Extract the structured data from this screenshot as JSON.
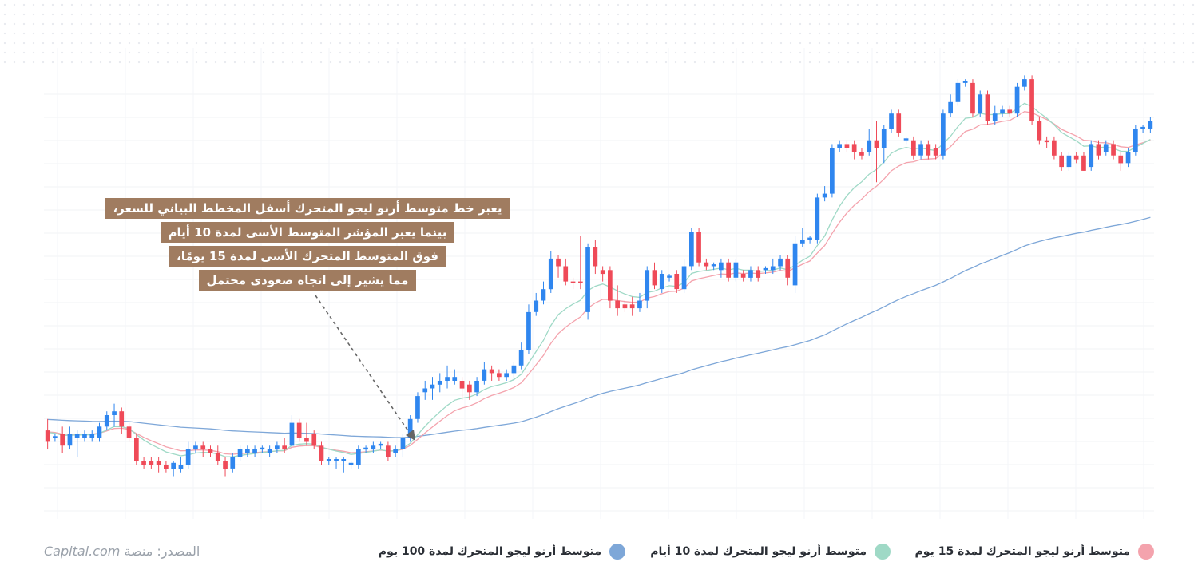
{
  "annotation": {
    "lines": [
      "يعبر خط متوسط أرنو ليجو المتحرك أسفل المخطط البياني للسعر،",
      "بينما يعبر المؤشر المتوسط الأسى لمدة 10 أيام",
      "فوق المتوسط المتحرك الأسى لمدة 15 يومًا،",
      "مما يشير إلى اتجاه صعودى محتمل"
    ]
  },
  "legend": {
    "items": [
      {
        "label": "متوسط أرنو ليجو المتحرك لمدة 15 يوم",
        "color": "#f4a3ad"
      },
      {
        "label": "متوسط أرنو ليجو المتحرك لمدة 10 أيام",
        "color": "#9fd9c6"
      },
      {
        "label": "متوسط أرنو ليجو المتحرك لمدة 100 يوم",
        "color": "#7ea7d8"
      }
    ]
  },
  "source": {
    "prefix": "المصدر: منصة",
    "brand": "Capital.com"
  },
  "colors": {
    "up": "#2f86ef",
    "down": "#ef4a58",
    "ma15": "#f4a3ad",
    "ma10": "#9fd9c6",
    "ma100": "#7ea7d8",
    "annotation_bg": "#a07c60"
  },
  "chart_data": {
    "type": "candlestick",
    "title": "",
    "xlabel": "",
    "ylabel": "",
    "ylim": [
      0,
      100
    ],
    "grid": true,
    "legend_position": "bottom",
    "candles": [
      {
        "o": 14,
        "c": 11,
        "h": 17,
        "l": 9
      },
      {
        "o": 12,
        "c": 12.5,
        "h": 13,
        "l": 11
      },
      {
        "o": 13,
        "c": 10,
        "h": 15,
        "l": 8
      },
      {
        "o": 10,
        "c": 13,
        "h": 15,
        "l": 9
      },
      {
        "o": 12,
        "c": 13,
        "h": 14,
        "l": 7
      },
      {
        "o": 12,
        "c": 13,
        "h": 14,
        "l": 11
      },
      {
        "o": 12,
        "c": 13,
        "h": 14,
        "l": 11
      },
      {
        "o": 12,
        "c": 15,
        "h": 16,
        "l": 11
      },
      {
        "o": 15,
        "c": 18,
        "h": 19,
        "l": 14
      },
      {
        "o": 18,
        "c": 19,
        "h": 21,
        "l": 15
      },
      {
        "o": 19,
        "c": 15,
        "h": 20,
        "l": 13
      },
      {
        "o": 15,
        "c": 12,
        "h": 16,
        "l": 11
      },
      {
        "o": 12,
        "c": 6,
        "h": 13,
        "l": 5
      },
      {
        "o": 6,
        "c": 5,
        "h": 7,
        "l": 4
      },
      {
        "o": 6,
        "c": 5,
        "h": 7,
        "l": 4
      },
      {
        "o": 6,
        "c": 5,
        "h": 7,
        "l": 3
      },
      {
        "o": 5,
        "c": 4,
        "h": 6,
        "l": 3
      },
      {
        "o": 4,
        "c": 5.5,
        "h": 6,
        "l": 2
      },
      {
        "o": 4,
        "c": 5,
        "h": 7,
        "l": 3
      },
      {
        "o": 5,
        "c": 9,
        "h": 11,
        "l": 4
      },
      {
        "o": 9,
        "c": 10,
        "h": 11,
        "l": 8
      },
      {
        "o": 10,
        "c": 9,
        "h": 11,
        "l": 7
      },
      {
        "o": 9,
        "c": 8,
        "h": 10,
        "l": 7
      },
      {
        "o": 8,
        "c": 6,
        "h": 10,
        "l": 5
      },
      {
        "o": 6,
        "c": 4,
        "h": 7,
        "l": 2
      },
      {
        "o": 4,
        "c": 7,
        "h": 8,
        "l": 3
      },
      {
        "o": 7,
        "c": 9,
        "h": 10,
        "l": 6
      },
      {
        "o": 8,
        "c": 9,
        "h": 10,
        "l": 7
      },
      {
        "o": 8,
        "c": 9,
        "h": 10,
        "l": 7
      },
      {
        "o": 9,
        "c": 9.5,
        "h": 10,
        "l": 8
      },
      {
        "o": 8,
        "c": 9,
        "h": 10,
        "l": 7
      },
      {
        "o": 9,
        "c": 10,
        "h": 11,
        "l": 8
      },
      {
        "o": 10,
        "c": 9,
        "h": 12,
        "l": 8
      },
      {
        "o": 10,
        "c": 16,
        "h": 18,
        "l": 9
      },
      {
        "o": 16,
        "c": 12,
        "h": 17,
        "l": 11
      },
      {
        "o": 12,
        "c": 11,
        "h": 16,
        "l": 10
      },
      {
        "o": 13,
        "c": 10,
        "h": 14,
        "l": 9
      },
      {
        "o": 10,
        "c": 6,
        "h": 11,
        "l": 5
      },
      {
        "o": 6,
        "c": 6.5,
        "h": 7,
        "l": 5
      },
      {
        "o": 6,
        "c": 6.5,
        "h": 7,
        "l": 4
      },
      {
        "o": 6,
        "c": 6.5,
        "h": 7,
        "l": 3
      },
      {
        "o": 5,
        "c": 5.5,
        "h": 6,
        "l": 4
      },
      {
        "o": 5,
        "c": 9,
        "h": 10,
        "l": 4
      },
      {
        "o": 9,
        "c": 9.5,
        "h": 10,
        "l": 8
      },
      {
        "o": 9,
        "c": 10,
        "h": 11,
        "l": 8
      },
      {
        "o": 10,
        "c": 10.5,
        "h": 11,
        "l": 9
      },
      {
        "o": 10,
        "c": 7,
        "h": 11,
        "l": 6
      },
      {
        "o": 8,
        "c": 9,
        "h": 10,
        "l": 7
      },
      {
        "o": 9,
        "c": 12,
        "h": 13,
        "l": 7
      },
      {
        "o": 12,
        "c": 17,
        "h": 18,
        "l": 11
      },
      {
        "o": 17,
        "c": 23,
        "h": 24,
        "l": 16
      },
      {
        "o": 24,
        "c": 25,
        "h": 27,
        "l": 22
      },
      {
        "o": 25,
        "c": 26,
        "h": 28,
        "l": 22
      },
      {
        "o": 26,
        "c": 27,
        "h": 29,
        "l": 24
      },
      {
        "o": 27,
        "c": 28,
        "h": 31,
        "l": 25
      },
      {
        "o": 27,
        "c": 28,
        "h": 30,
        "l": 26
      },
      {
        "o": 27,
        "c": 25,
        "h": 28,
        "l": 22
      },
      {
        "o": 26,
        "c": 24,
        "h": 27,
        "l": 22
      },
      {
        "o": 24,
        "c": 27,
        "h": 28,
        "l": 23
      },
      {
        "o": 27,
        "c": 30,
        "h": 32,
        "l": 26
      },
      {
        "o": 30,
        "c": 29,
        "h": 31,
        "l": 27
      },
      {
        "o": 29,
        "c": 28,
        "h": 30,
        "l": 27
      },
      {
        "o": 28,
        "c": 29,
        "h": 30,
        "l": 27
      },
      {
        "o": 29,
        "c": 31,
        "h": 32,
        "l": 27
      },
      {
        "o": 31,
        "c": 35,
        "h": 37,
        "l": 30
      },
      {
        "o": 35,
        "c": 45,
        "h": 47,
        "l": 34
      },
      {
        "o": 45,
        "c": 48,
        "h": 50,
        "l": 44
      },
      {
        "o": 48,
        "c": 51,
        "h": 53,
        "l": 47
      },
      {
        "o": 51,
        "c": 59,
        "h": 61,
        "l": 50
      },
      {
        "o": 59,
        "c": 57,
        "h": 60,
        "l": 54
      },
      {
        "o": 57,
        "c": 53,
        "h": 59,
        "l": 52
      },
      {
        "o": 53,
        "c": 52.5,
        "h": 54,
        "l": 51
      },
      {
        "o": 53,
        "c": 52.5,
        "h": 65,
        "l": 51
      },
      {
        "o": 45,
        "c": 62,
        "h": 63,
        "l": 43
      },
      {
        "o": 62,
        "c": 57,
        "h": 64,
        "l": 55
      },
      {
        "o": 56,
        "c": 55,
        "h": 57,
        "l": 53
      },
      {
        "o": 56,
        "c": 48,
        "h": 57,
        "l": 46
      },
      {
        "o": 48,
        "c": 46,
        "h": 52,
        "l": 44
      },
      {
        "o": 47,
        "c": 46,
        "h": 48,
        "l": 45
      },
      {
        "o": 47,
        "c": 46,
        "h": 49,
        "l": 44
      },
      {
        "o": 46,
        "c": 48,
        "h": 50,
        "l": 45
      },
      {
        "o": 48,
        "c": 56,
        "h": 57,
        "l": 46
      },
      {
        "o": 56,
        "c": 52,
        "h": 58,
        "l": 51
      },
      {
        "o": 51,
        "c": 55,
        "h": 56,
        "l": 50
      },
      {
        "o": 54,
        "c": 54.5,
        "h": 55,
        "l": 53
      },
      {
        "o": 55,
        "c": 51,
        "h": 56,
        "l": 50
      },
      {
        "o": 51,
        "c": 57,
        "h": 59,
        "l": 50
      },
      {
        "o": 57,
        "c": 66,
        "h": 67,
        "l": 56
      },
      {
        "o": 66,
        "c": 58,
        "h": 67,
        "l": 57
      },
      {
        "o": 58,
        "c": 57,
        "h": 59,
        "l": 56
      },
      {
        "o": 57,
        "c": 57.5,
        "h": 58,
        "l": 56
      },
      {
        "o": 56,
        "c": 58,
        "h": 59,
        "l": 54
      },
      {
        "o": 58,
        "c": 54,
        "h": 59,
        "l": 53
      },
      {
        "o": 54,
        "c": 58,
        "h": 59,
        "l": 53
      },
      {
        "o": 55,
        "c": 54,
        "h": 56,
        "l": 53
      },
      {
        "o": 54,
        "c": 56,
        "h": 57,
        "l": 53
      },
      {
        "o": 56,
        "c": 54,
        "h": 57,
        "l": 53
      },
      {
        "o": 56,
        "c": 56.5,
        "h": 57,
        "l": 55
      },
      {
        "o": 56,
        "c": 57,
        "h": 59,
        "l": 55
      },
      {
        "o": 57,
        "c": 59,
        "h": 60,
        "l": 56
      },
      {
        "o": 59,
        "c": 54,
        "h": 60,
        "l": 52
      },
      {
        "o": 52,
        "c": 63,
        "h": 65,
        "l": 50
      },
      {
        "o": 63,
        "c": 64,
        "h": 67,
        "l": 62
      },
      {
        "o": 64,
        "c": 64.5,
        "h": 65,
        "l": 63
      },
      {
        "o": 64,
        "c": 75,
        "h": 76,
        "l": 63
      },
      {
        "o": 75,
        "c": 76,
        "h": 78,
        "l": 74
      },
      {
        "o": 76,
        "c": 88,
        "h": 89,
        "l": 75
      },
      {
        "o": 88,
        "c": 89,
        "h": 90,
        "l": 87
      },
      {
        "o": 89,
        "c": 88,
        "h": 90,
        "l": 87
      },
      {
        "o": 89,
        "c": 87,
        "h": 90,
        "l": 85
      },
      {
        "o": 87,
        "c": 86,
        "h": 88,
        "l": 85
      },
      {
        "o": 87,
        "c": 90,
        "h": 93,
        "l": 86
      },
      {
        "o": 90,
        "c": 88,
        "h": 95,
        "l": 79
      },
      {
        "o": 88,
        "c": 93,
        "h": 94,
        "l": 84
      },
      {
        "o": 93,
        "c": 97,
        "h": 98,
        "l": 92
      },
      {
        "o": 97,
        "c": 92,
        "h": 98,
        "l": 91
      },
      {
        "o": 90,
        "c": 90.5,
        "h": 91,
        "l": 89
      },
      {
        "o": 90,
        "c": 86,
        "h": 91,
        "l": 85
      },
      {
        "o": 86,
        "c": 89,
        "h": 90,
        "l": 85
      },
      {
        "o": 89,
        "c": 86,
        "h": 90,
        "l": 85
      },
      {
        "o": 88,
        "c": 86,
        "h": 89,
        "l": 85
      },
      {
        "o": 86,
        "c": 97,
        "h": 98,
        "l": 85
      },
      {
        "o": 97,
        "c": 100,
        "h": 102,
        "l": 96
      },
      {
        "o": 100,
        "c": 105,
        "h": 106,
        "l": 99
      },
      {
        "o": 105,
        "c": 105.5,
        "h": 106,
        "l": 104
      },
      {
        "o": 105,
        "c": 97,
        "h": 106,
        "l": 96
      },
      {
        "o": 97,
        "c": 102,
        "h": 103,
        "l": 96
      },
      {
        "o": 102,
        "c": 95,
        "h": 103,
        "l": 94
      },
      {
        "o": 95,
        "c": 97,
        "h": 99,
        "l": 94
      },
      {
        "o": 97,
        "c": 98,
        "h": 99,
        "l": 96
      },
      {
        "o": 98,
        "c": 97,
        "h": 99,
        "l": 96
      },
      {
        "o": 97,
        "c": 104,
        "h": 105,
        "l": 96
      },
      {
        "o": 104,
        "c": 106,
        "h": 107,
        "l": 103
      },
      {
        "o": 106,
        "c": 95,
        "h": 107,
        "l": 94
      },
      {
        "o": 95,
        "c": 90,
        "h": 96,
        "l": 89
      },
      {
        "o": 90,
        "c": 89.5,
        "h": 91,
        "l": 88
      },
      {
        "o": 90,
        "c": 86,
        "h": 91,
        "l": 85
      },
      {
        "o": 86,
        "c": 83,
        "h": 87,
        "l": 82
      },
      {
        "o": 83,
        "c": 86,
        "h": 87,
        "l": 82
      },
      {
        "o": 86,
        "c": 85,
        "h": 87,
        "l": 84
      },
      {
        "o": 86,
        "c": 82,
        "h": 87,
        "l": 82
      },
      {
        "o": 83,
        "c": 89,
        "h": 90,
        "l": 82
      },
      {
        "o": 89,
        "c": 86,
        "h": 90,
        "l": 85
      },
      {
        "o": 87,
        "c": 89,
        "h": 90,
        "l": 86
      },
      {
        "o": 89,
        "c": 86,
        "h": 90,
        "l": 85
      },
      {
        "o": 86,
        "c": 84,
        "h": 87,
        "l": 82
      },
      {
        "o": 84,
        "c": 87,
        "h": 88,
        "l": 83
      },
      {
        "o": 87,
        "c": 93,
        "h": 94,
        "l": 86
      },
      {
        "o": 93,
        "c": 93.5,
        "h": 94,
        "l": 92
      },
      {
        "o": 93,
        "c": 95,
        "h": 96,
        "l": 92
      }
    ]
  }
}
